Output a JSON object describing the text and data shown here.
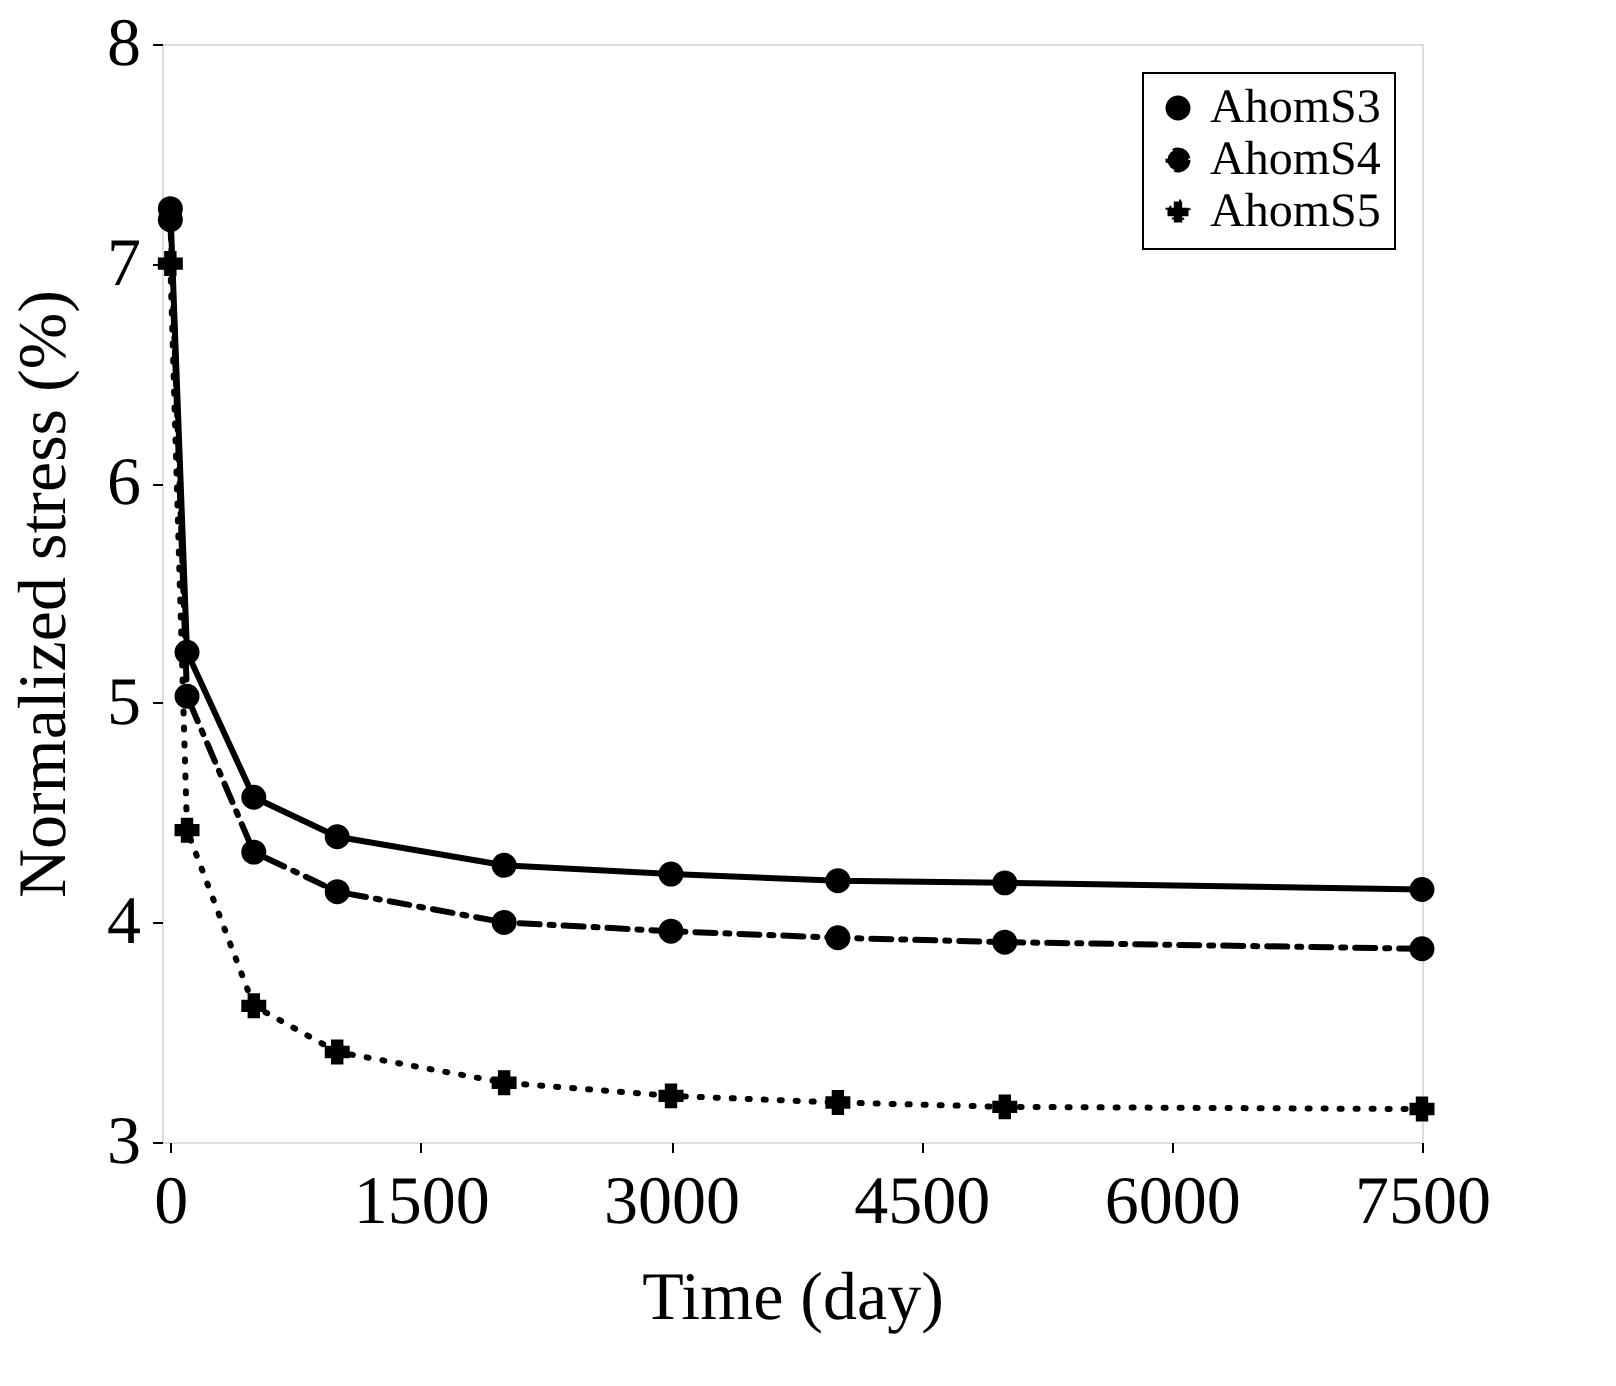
{
  "chart_data": {
    "type": "line",
    "xlabel": "Time (day)",
    "ylabel": "Normalized stress (%)",
    "xlim": [
      -50,
      7500
    ],
    "xticks": [
      0,
      1500,
      3000,
      4500,
      6000,
      7500
    ],
    "ylim": [
      3,
      8
    ],
    "yticks": [
      3,
      4,
      5,
      6,
      7,
      8
    ],
    "grid": false,
    "legend": "top right",
    "series": [
      {
        "name": "AhomS3",
        "color": "#000000",
        "marker": "circle",
        "line_style": "solid",
        "x": [
          0,
          100,
          500,
          1000,
          2000,
          3000,
          4000,
          5000,
          7500
        ],
        "values": [
          7.25,
          5.23,
          4.57,
          4.39,
          4.26,
          4.22,
          4.19,
          4.18,
          4.15
        ]
      },
      {
        "name": "AhomS4",
        "color": "#000000",
        "marker": "circle",
        "line_style": "dashed",
        "x": [
          0,
          100,
          500,
          1000,
          2000,
          3000,
          4000,
          5000,
          7500
        ],
        "values": [
          7.2,
          5.03,
          4.32,
          4.14,
          4.0,
          3.96,
          3.93,
          3.91,
          3.88
        ]
      },
      {
        "name": "AhomS5",
        "color": "#000000",
        "marker": "cross",
        "line_style": "dotted",
        "x": [
          0,
          100,
          500,
          1000,
          2000,
          3000,
          4000,
          5000,
          7500
        ],
        "values": [
          7.0,
          4.42,
          3.62,
          3.41,
          3.27,
          3.21,
          3.18,
          3.16,
          3.15
        ]
      }
    ]
  }
}
